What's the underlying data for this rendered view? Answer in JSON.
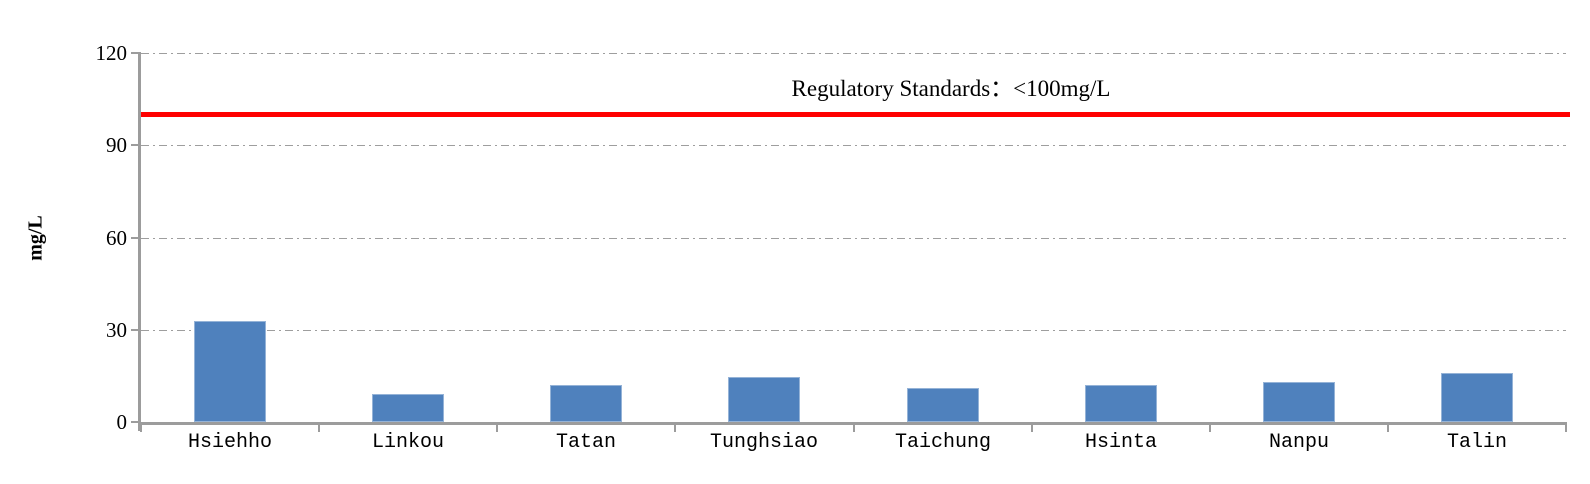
{
  "chart_data": {
    "type": "bar",
    "title": "",
    "ylabel": "mg/L",
    "xlabel": "",
    "categories": [
      "Hsiehho",
      "Linkou",
      "Tatan",
      "Tunghsiao",
      "Taichung",
      "Hsinta",
      "Nanpu",
      "Talin"
    ],
    "values": [
      33,
      9,
      12,
      14.5,
      11,
      12,
      13,
      16
    ],
    "ylim": [
      0,
      120
    ],
    "yticks": [
      0,
      30,
      60,
      90,
      120
    ],
    "grid": "horizontal dash-dot lines at y ticks",
    "legend": "none",
    "reference_line": {
      "value": 100,
      "label": "Regulatory Standards：<100mg/L",
      "color": "#ff0000"
    },
    "colors": {
      "bar": "#4f81bd",
      "bar_edge": "#95b3d7",
      "axis": "#9c9c9c",
      "gridline": "#9e9e9e",
      "text": "#000000"
    }
  }
}
